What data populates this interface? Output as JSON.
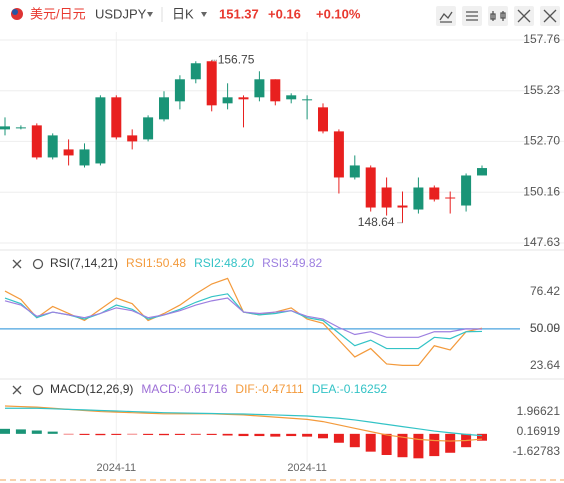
{
  "header": {
    "pair": "美元/日元",
    "symbol": "USDJPY",
    "period": "日K",
    "price": 151.37,
    "change": "+0.16",
    "change_pct": "+0.10%"
  },
  "chart_data": [
    {
      "type": "candlestick",
      "categories": [
        null,
        null,
        null,
        null,
        null,
        null,
        null,
        "2024-11",
        null,
        null,
        null,
        null,
        null,
        null,
        null,
        null,
        null,
        null,
        null,
        "2024-11",
        null,
        null,
        null,
        null,
        null,
        null,
        null,
        null,
        null,
        null,
        null
      ],
      "open": [
        153.3,
        153.4,
        153.5,
        151.9,
        152.3,
        151.5,
        151.6,
        154.9,
        153.0,
        152.8,
        153.8,
        154.7,
        155.8,
        156.7,
        154.6,
        154.9,
        154.9,
        155.8,
        154.8,
        154.8,
        154.4,
        153.2,
        150.9,
        151.4,
        150.4,
        149.5,
        149.3,
        150.4,
        149.9,
        149.5,
        151.0
      ],
      "high": [
        153.9,
        153.5,
        153.6,
        153.1,
        152.8,
        152.6,
        155.0,
        155.0,
        153.3,
        154.0,
        155.2,
        156.0,
        156.7,
        156.75,
        155.6,
        155.0,
        156.2,
        155.8,
        155.1,
        155.0,
        154.6,
        153.3,
        152.0,
        151.5,
        150.9,
        150.2,
        150.9,
        150.5,
        150.2,
        151.1,
        151.5
      ],
      "low": [
        153.0,
        153.3,
        151.8,
        151.8,
        151.5,
        151.4,
        151.5,
        152.8,
        152.3,
        152.7,
        153.7,
        154.3,
        155.6,
        154.2,
        154.3,
        153.4,
        154.7,
        154.5,
        154.6,
        153.8,
        153.1,
        150.1,
        150.8,
        149.2,
        149.0,
        148.64,
        149.1,
        149.7,
        149.1,
        149.2,
        151.0
      ],
      "close": [
        153.45,
        153.4,
        151.9,
        153.0,
        152.0,
        152.3,
        154.9,
        152.9,
        152.7,
        153.9,
        154.9,
        155.8,
        156.6,
        154.5,
        154.9,
        154.8,
        155.8,
        154.7,
        155.0,
        154.8,
        153.2,
        150.9,
        151.5,
        149.4,
        149.4,
        149.4,
        150.4,
        149.8,
        149.85,
        151.0,
        151.37
      ],
      "up_color": "#1a9477",
      "down_color": "#e8201f",
      "ylim": [
        147.38,
        158.16
      ],
      "yticks": [
        157.76,
        155.23,
        {
          "value": 152.7,
          "label": "152.70"
        },
        150.16,
        147.63
      ],
      "annotations": [
        156.75,
        148.64
      ],
      "grid": true
    },
    {
      "type": "line",
      "title": "RSI(7,14,21)",
      "series": [
        {
          "name": "RSI1:50.48",
          "color": "#f39a3c",
          "values": [
            77,
            71,
            58,
            66,
            61,
            56,
            64,
            72,
            68,
            56,
            61,
            67,
            75,
            82,
            86,
            62,
            60,
            62,
            65,
            57,
            54,
            42,
            30,
            36,
            25,
            24,
            24,
            38,
            35,
            48,
            50.48
          ]
        },
        {
          "name": "RSI2:48.20",
          "color": "#33c3c6",
          "values": [
            72,
            68,
            58,
            62,
            60,
            57,
            61,
            67,
            64,
            57,
            60,
            64,
            69,
            73,
            75,
            62,
            60,
            61,
            63,
            58,
            56,
            47,
            38,
            42,
            36,
            36,
            36,
            44,
            43,
            48,
            48.2
          ]
        },
        {
          "name": "RSI3:49.82",
          "color": "#9d7fe0",
          "values": [
            70,
            67,
            59,
            62,
            60,
            58,
            61,
            65,
            63,
            58,
            60,
            63,
            67,
            70,
            72,
            62,
            61,
            62,
            63,
            59,
            57,
            51,
            46,
            48,
            44,
            44,
            44,
            48,
            48,
            50,
            49.82
          ]
        }
      ],
      "ylim": [
        15,
        92
      ],
      "yticks": [
        76.42,
        50.09,
        {
          "value": 50,
          "label": "50.00"
        },
        23.64
      ],
      "reference_line": {
        "value": 50,
        "color": "#4aa3df"
      }
    },
    {
      "type": "combo",
      "title": "MACD(12,26,9)",
      "series": [
        {
          "name": "MACD:-0.61716",
          "kind": "bar",
          "color": "#9d6fd6",
          "up_color": "#1a9477",
          "down_color": "#e8201f",
          "values": [
            0.45,
            0.4,
            0.3,
            0.2,
            -0.05,
            -0.1,
            -0.12,
            -0.1,
            -0.05,
            -0.1,
            -0.12,
            -0.1,
            -0.08,
            -0.1,
            -0.15,
            -0.2,
            -0.2,
            -0.25,
            -0.2,
            -0.25,
            -0.4,
            -0.8,
            -1.2,
            -1.6,
            -1.9,
            -2.1,
            -2.2,
            -2.0,
            -1.7,
            -1.2,
            -0.61716
          ]
        },
        {
          "name": "DIF:-0.47111",
          "kind": "line",
          "color": "#f39a3c",
          "values": [
            2.5,
            2.45,
            2.4,
            2.3,
            2.2,
            2.1,
            2.0,
            1.95,
            1.9,
            1.85,
            1.8,
            1.8,
            1.8,
            1.8,
            1.75,
            1.7,
            1.6,
            1.5,
            1.4,
            1.3,
            1.1,
            0.8,
            0.5,
            0.2,
            -0.1,
            -0.3,
            -0.5,
            -0.6,
            -0.65,
            -0.6,
            -0.47111
          ]
        },
        {
          "name": "DEA:-0.16252",
          "kind": "line",
          "color": "#33c3c6",
          "values": [
            2.3,
            2.3,
            2.3,
            2.25,
            2.2,
            2.15,
            2.1,
            2.05,
            2.0,
            1.95,
            1.9,
            1.88,
            1.85,
            1.83,
            1.8,
            1.78,
            1.74,
            1.7,
            1.65,
            1.6,
            1.5,
            1.4,
            1.25,
            1.05,
            0.85,
            0.65,
            0.45,
            0.25,
            0.1,
            -0.05,
            -0.16252
          ]
        }
      ],
      "ylim": [
        -2.53,
        3.22
      ],
      "yticks": [
        1.96621,
        0.16919,
        -1.62783
      ]
    }
  ]
}
